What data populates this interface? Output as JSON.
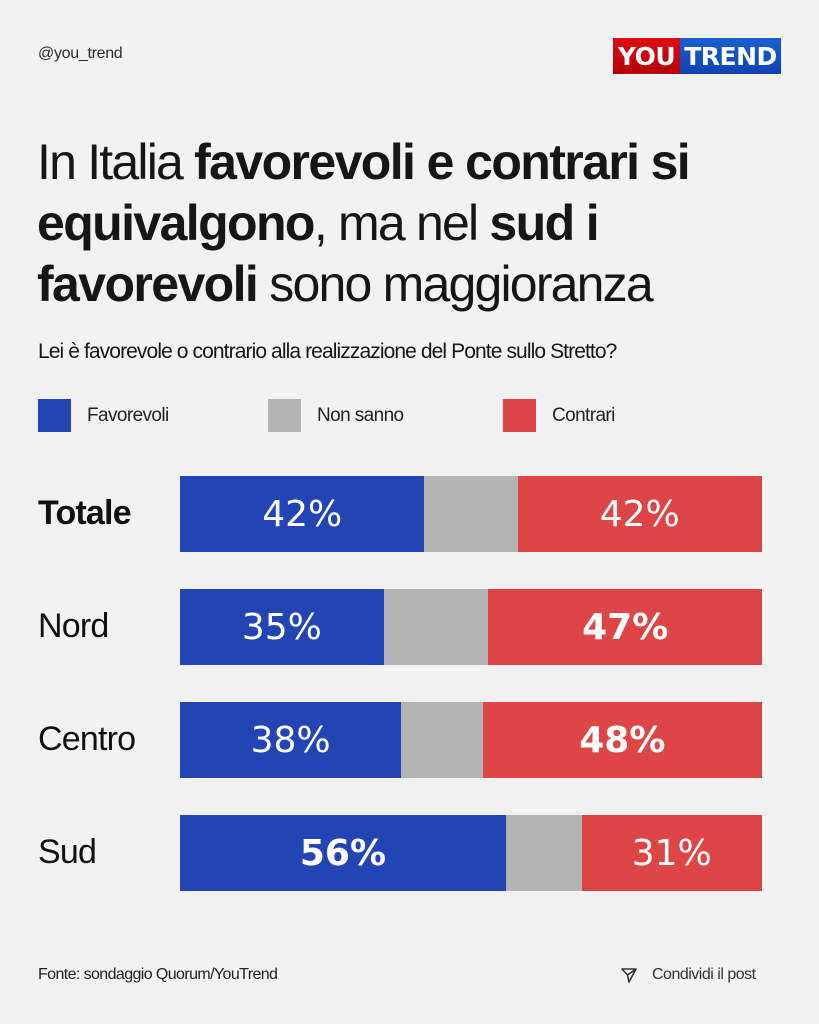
{
  "header": {
    "handle": "@you_trend",
    "logo": {
      "part1": "YOU",
      "part2": "TREND"
    }
  },
  "title": {
    "segments": [
      {
        "text": "In Italia ",
        "bold": false
      },
      {
        "text": "favorevoli e contrari",
        "bold": true
      },
      {
        "text": " ",
        "bold": false
      },
      {
        "text": "si equivalgono",
        "bold": true
      },
      {
        "text": ", ma nel ",
        "bold": false
      },
      {
        "text": "sud i",
        "bold": true
      },
      {
        "text": " ",
        "bold": false
      },
      {
        "text": "favorevoli",
        "bold": true
      },
      {
        "text": " sono maggioranza",
        "bold": false
      }
    ]
  },
  "question": "Lei è favorevole o contrario alla realizzazione del Ponte sullo Stretto?",
  "colors": {
    "favorevoli": "#2245b3",
    "non_sanno": "#b3b3b3",
    "contrari": "#de4546",
    "background": "#f2f2f2"
  },
  "chart_data": {
    "type": "bar",
    "orientation": "horizontal-stacked-100",
    "title": "In Italia favorevoli e contrari si equivalgono, ma nel sud i favorevoli sono maggioranza",
    "subtitle": "Lei è favorevole o contrario alla realizzazione del Ponte sullo Stretto?",
    "unit": "%",
    "legend": [
      "Favorevoli",
      "Non sanno",
      "Contrari"
    ],
    "legend_position": "top-left",
    "categories": [
      "Totale",
      "Nord",
      "Centro",
      "Sud"
    ],
    "series": [
      {
        "name": "Favorevoli",
        "values": [
          42,
          35,
          38,
          56
        ],
        "labels": [
          "42%",
          "35%",
          "38%",
          "56%"
        ],
        "bold": [
          false,
          false,
          false,
          true
        ]
      },
      {
        "name": "Non sanno",
        "values": [
          16,
          18,
          14,
          13
        ],
        "labels": [
          "",
          "",
          "",
          ""
        ],
        "bold": [
          false,
          false,
          false,
          false
        ]
      },
      {
        "name": "Contrari",
        "values": [
          42,
          47,
          48,
          31
        ],
        "labels": [
          "42%",
          "47%",
          "48%",
          "31%"
        ],
        "bold": [
          false,
          true,
          true,
          false
        ]
      }
    ],
    "category_bold": [
      true,
      false,
      false,
      false
    ],
    "xlim": [
      0,
      100
    ],
    "grid": false
  },
  "footer": {
    "source": "Fonte: sondaggio Quorum/YouTrend",
    "share_label": "Condividi il post",
    "share_icon": "send-icon"
  }
}
